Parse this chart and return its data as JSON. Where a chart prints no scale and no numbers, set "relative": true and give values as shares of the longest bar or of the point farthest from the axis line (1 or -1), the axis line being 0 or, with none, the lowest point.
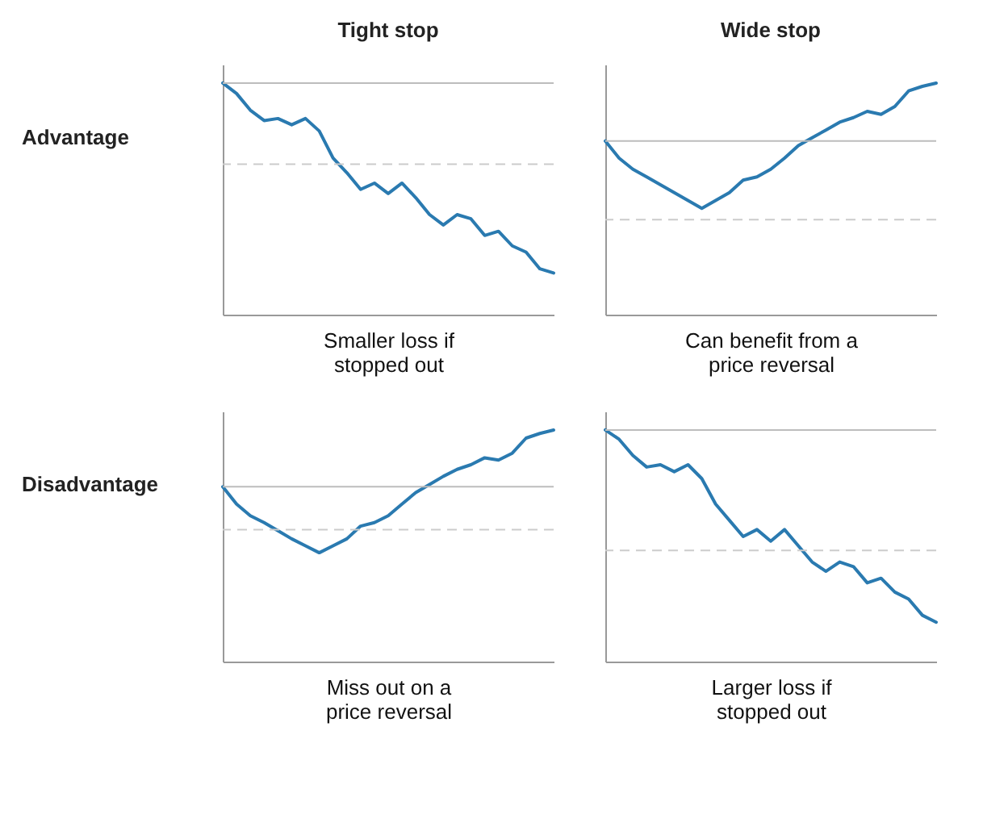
{
  "chart_data": [
    {
      "type": "line",
      "title": "Tight stop",
      "ylabel": "Advantage",
      "xlabel": "Smaller loss if stopped out",
      "relative": true,
      "tick_labels": false,
      "categories": [
        null,
        null,
        null,
        null,
        null,
        null,
        null,
        null,
        null,
        null,
        null,
        null,
        null,
        null,
        null,
        null,
        null,
        null,
        null,
        null,
        null,
        null,
        null,
        null,
        null
      ],
      "series": [
        {
          "color": "#2a7ab0",
          "values": [
            1.0,
            0.955,
            0.883,
            0.838,
            0.847,
            0.82,
            0.847,
            0.793,
            0.676,
            0.613,
            0.541,
            0.568,
            0.523,
            0.568,
            0.505,
            0.432,
            0.387,
            0.432,
            0.414,
            0.342,
            0.36,
            0.297,
            0.27,
            0.198,
            0.18
          ]
        }
      ],
      "ref_lines": [
        {
          "axis": "y",
          "value": 1.0,
          "color": "#bdbdbd",
          "line_style": "solid"
        },
        {
          "axis": "y",
          "value": 0.65,
          "color": "#cccccc",
          "line_style": "dashed"
        }
      ]
    },
    {
      "type": "line",
      "title": "Wide stop",
      "xlabel": "Can benefit from a price reversal",
      "relative": true,
      "tick_labels": false,
      "categories": [
        null,
        null,
        null,
        null,
        null,
        null,
        null,
        null,
        null,
        null,
        null,
        null,
        null,
        null,
        null,
        null,
        null,
        null,
        null,
        null,
        null,
        null,
        null,
        null,
        null
      ],
      "series": [
        {
          "color": "#2a7ab0",
          "values": [
            0.75,
            0.676,
            0.628,
            0.595,
            0.561,
            0.527,
            0.493,
            0.459,
            0.493,
            0.527,
            0.581,
            0.595,
            0.628,
            0.676,
            0.73,
            0.764,
            0.797,
            0.831,
            0.851,
            0.878,
            0.865,
            0.899,
            0.966,
            0.986,
            1.0
          ]
        }
      ],
      "ref_lines": [
        {
          "axis": "y",
          "value": 0.75,
          "color": "#bdbdbd",
          "line_style": "solid"
        },
        {
          "axis": "y",
          "value": 0.41,
          "color": "#cccccc",
          "line_style": "dashed"
        }
      ]
    },
    {
      "type": "line",
      "ylabel": "Disadvantage",
      "xlabel": "Miss out on a price reversal",
      "relative": true,
      "tick_labels": false,
      "categories": [
        null,
        null,
        null,
        null,
        null,
        null,
        null,
        null,
        null,
        null,
        null,
        null,
        null,
        null,
        null,
        null,
        null,
        null,
        null,
        null,
        null,
        null,
        null,
        null,
        null
      ],
      "series": [
        {
          "color": "#2a7ab0",
          "values": [
            0.755,
            0.68,
            0.63,
            0.6,
            0.565,
            0.53,
            0.5,
            0.47,
            0.5,
            0.53,
            0.585,
            0.6,
            0.63,
            0.68,
            0.73,
            0.765,
            0.8,
            0.83,
            0.85,
            0.88,
            0.87,
            0.9,
            0.965,
            0.985,
            1.0
          ]
        }
      ],
      "ref_lines": [
        {
          "axis": "y",
          "value": 0.755,
          "color": "#bdbdbd",
          "line_style": "solid"
        },
        {
          "axis": "y",
          "value": 0.57,
          "color": "#cccccc",
          "line_style": "dashed"
        }
      ]
    },
    {
      "type": "line",
      "xlabel": "Larger loss if stopped out",
      "relative": true,
      "tick_labels": false,
      "categories": [
        null,
        null,
        null,
        null,
        null,
        null,
        null,
        null,
        null,
        null,
        null,
        null,
        null,
        null,
        null,
        null,
        null,
        null,
        null,
        null,
        null,
        null,
        null,
        null,
        null
      ],
      "series": [
        {
          "color": "#2a7ab0",
          "values": [
            1.0,
            0.96,
            0.89,
            0.84,
            0.85,
            0.82,
            0.85,
            0.79,
            0.68,
            0.61,
            0.54,
            0.57,
            0.52,
            0.57,
            0.5,
            0.43,
            0.39,
            0.43,
            0.41,
            0.34,
            0.36,
            0.3,
            0.27,
            0.2,
            0.17
          ]
        }
      ],
      "ref_lines": [
        {
          "axis": "y",
          "value": 1.0,
          "color": "#bdbdbd",
          "line_style": "solid"
        },
        {
          "axis": "y",
          "value": 0.48,
          "color": "#cccccc",
          "line_style": "dashed"
        }
      ]
    }
  ]
}
